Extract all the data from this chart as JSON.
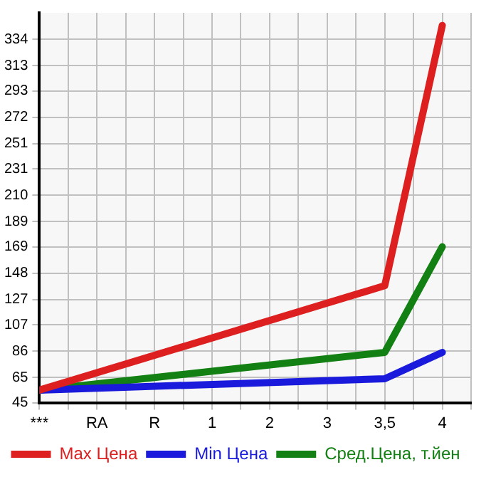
{
  "chart_data": {
    "type": "line",
    "categories": [
      "***",
      "RA",
      "R",
      "1",
      "2",
      "3",
      "3,5",
      "4"
    ],
    "series": [
      {
        "name": "Max Цена",
        "color": "#dd1f1f",
        "values": [
          55,
          null,
          null,
          null,
          null,
          null,
          138,
          345
        ]
      },
      {
        "name": "Min Цена",
        "color": "#1a1adc",
        "values": [
          55,
          null,
          null,
          null,
          null,
          null,
          64,
          85
        ]
      },
      {
        "name": "Сред.Цена, т.йен",
        "color": "#138013",
        "values": [
          55,
          null,
          null,
          null,
          null,
          null,
          85,
          169
        ]
      }
    ],
    "ylim": [
      45,
      355
    ],
    "yticks": [
      45,
      65,
      86,
      107,
      127,
      148,
      169,
      189,
      210,
      231,
      251,
      272,
      293,
      313,
      334
    ],
    "grid": true,
    "legend": "bottom",
    "marker": "none",
    "line_style": "solid"
  }
}
